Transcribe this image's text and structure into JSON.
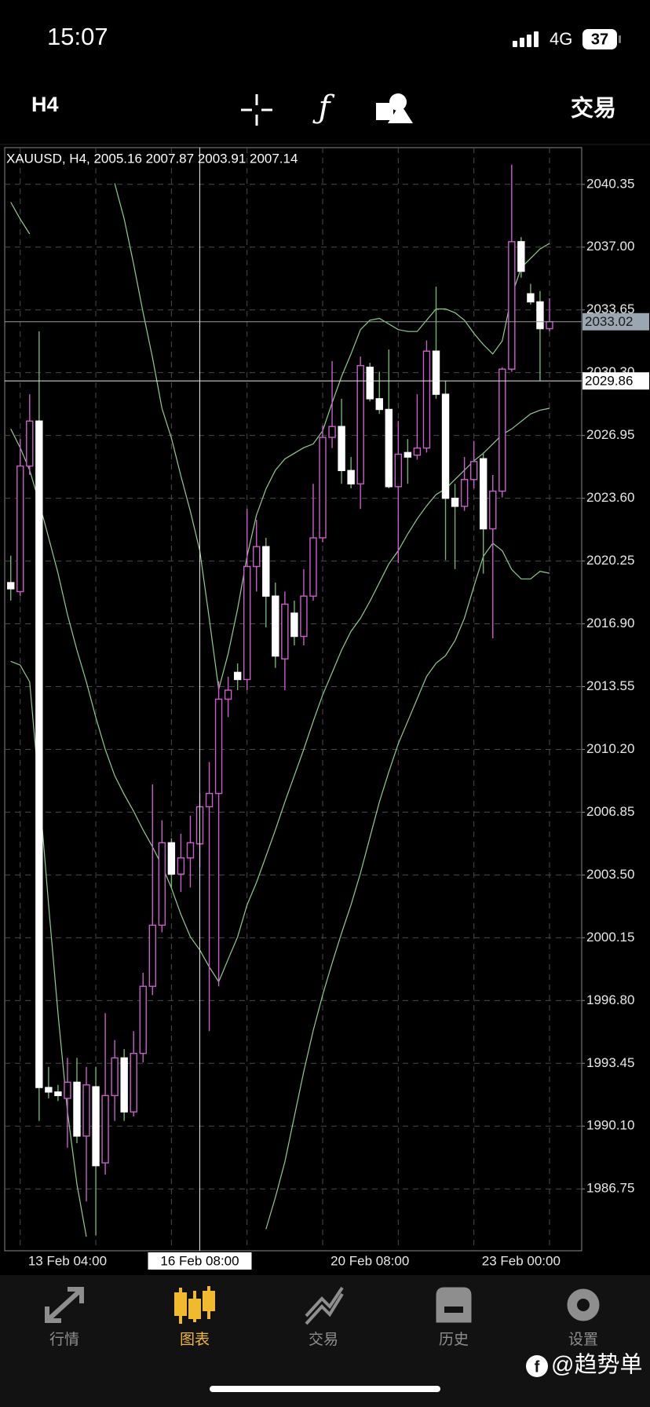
{
  "status_bar": {
    "time": "15:07",
    "network": "4G",
    "battery": 37
  },
  "toolbar": {
    "timeframe": "H4",
    "action": "交易"
  },
  "chart_data": {
    "type": "candlestick",
    "title": "XAUUSD, H4, 2005.16 2007.87 2003.91 2007.14",
    "categories": [
      null,
      null,
      null,
      null,
      null,
      null,
      "13 Feb 04:00",
      null,
      null,
      null,
      null,
      null,
      null,
      null,
      null,
      null,
      null,
      null,
      null,
      null,
      "16 Feb 08:00",
      null,
      null,
      null,
      null,
      null,
      null,
      null,
      null,
      null,
      null,
      null,
      null,
      null,
      null,
      null,
      null,
      null,
      "20 Feb 08:00",
      null,
      null,
      null,
      null,
      null,
      null,
      null,
      null,
      null,
      null,
      null,
      null,
      null,
      null,
      null,
      "23 Feb 00:00",
      null,
      null,
      null
    ],
    "open": [
      2019.1,
      2018.62,
      2025.32,
      2027.72,
      1992.16,
      1991.92,
      1991.58,
      1992.44,
      1989.57,
      1992.2,
      1988.14,
      1991.73,
      1993.74,
      1990.86,
      1993.98,
      1997.56,
      2000.82,
      2005.22,
      2003.55,
      2004.41,
      2005.16,
      2007.14,
      2007.85,
      2012.88,
      2014.31,
      2013.93,
      2019.96,
      2021.02,
      2018.38,
      2015.03,
      2017.47,
      2016.23,
      2018.38,
      2021.49,
      2026.85,
      2027.43,
      2025.08,
      2024.37,
      2030.59,
      2028.91,
      2028.34,
      2024.22,
      2026.04,
      2025.9,
      2026.28,
      2031.45,
      2029.15,
      2023.6,
      2023.17,
      2024.6,
      2025.71,
      2021.97,
      2023.98,
      2030.49,
      2037.29,
      2034.51,
      2034.08,
      2032.65
    ],
    "high": [
      2020.54,
      2026.76,
      2029.15,
      2032.5,
      1993.26,
      1992.3,
      1993.74,
      1993.74,
      1993.26,
      1993.26,
      1996.13,
      1994.69,
      1994.21,
      1995.17,
      1998.28,
      2008.33,
      2006.42,
      2005.46,
      2005.7,
      2006.66,
      2007.87,
      2009.53,
      2013.84,
      2014.08,
      2014.79,
      2023.03,
      2022.45,
      2021.49,
      2019.1,
      2018.62,
      2018.14,
      2019.82,
      2024.37,
      2027.48,
      2030.92,
      2028.91,
      2025.8,
      2031.16,
      2030.83,
      2030.35,
      2031.54,
      2027.72,
      2026.76,
      2029.15,
      2032.02,
      2034.89,
      2029.87,
      2024.37,
      2025.8,
      2026.66,
      2026.04,
      2024.84,
      2030.59,
      2041.4,
      2037.53,
      2035.04,
      2034.66,
      2034.27
    ],
    "low": [
      2018.14,
      2018.38,
      2024.84,
      1990.38,
      1991.58,
      1991.44,
      1988.95,
      1989.19,
      1986.08,
      1984.26,
      1987.51,
      1990.38,
      1990.38,
      1990.62,
      1993.5,
      1997.09,
      2000.44,
      2002.83,
      2002.59,
      2002.83,
      2003.91,
      1995.17,
      1997.56,
      2011.92,
      2013.36,
      2013.36,
      2018.62,
      2016.71,
      2014.55,
      2013.36,
      2015.75,
      2015.75,
      2018.14,
      2021.25,
      2026.28,
      2024.37,
      2024.13,
      2023.03,
      2028.77,
      2028.1,
      2024.13,
      2020.15,
      2024.37,
      2025.66,
      2026.04,
      2028.91,
      2020.3,
      2019.82,
      2022.93,
      2024.13,
      2019.58,
      2016.13,
      2023.65,
      2030.35,
      2035.37,
      2033.94,
      2029.87,
      2032.5
    ],
    "close": [
      2018.77,
      2025.32,
      2027.72,
      1992.16,
      1991.92,
      1991.73,
      1992.44,
      1989.57,
      1992.3,
      1987.99,
      1991.73,
      1993.74,
      1990.86,
      1993.98,
      1997.56,
      2000.82,
      2005.22,
      2003.55,
      2004.41,
      2005.22,
      2007.14,
      2007.85,
      2012.88,
      2013.36,
      2013.93,
      2019.96,
      2021.02,
      2018.38,
      2015.18,
      2017.95,
      2016.23,
      2018.38,
      2021.49,
      2026.85,
      2027.43,
      2025.08,
      2024.37,
      2030.68,
      2028.91,
      2028.34,
      2024.22,
      2025.95,
      2025.8,
      2026.28,
      2031.45,
      2029.15,
      2023.6,
      2023.17,
      2024.6,
      2025.56,
      2021.97,
      2023.98,
      2030.49,
      2037.29,
      2035.71,
      2034.08,
      2032.65,
      2033.02
    ],
    "up_color": "#c95fc9",
    "down_color": "#ffffff",
    "down_wick_color": "#6fb56f",
    "overlays": [
      {
        "color": "#8fcf8f",
        "values": [
          2039.4,
          2038.5,
          2037.7,
          null,
          null,
          null,
          null,
          null,
          null,
          null,
          null,
          2040.4,
          2038.5,
          2036.1,
          2033.5,
          2031.1,
          2028.4,
          2026.8,
          2024.8,
          2022.9,
          2020.8,
          2017.2,
          2013.4,
          2015.3,
          2017.7,
          2020.5,
          2022.7,
          2024.1,
          2025.1,
          2025.7,
          2026.0,
          2026.3,
          2026.5,
          2027.2,
          2028.7,
          2030.1,
          2031.3,
          2032.6,
          2033.1,
          2033.2,
          2032.9,
          2032.6,
          2032.5,
          2032.5,
          2033.1,
          2033.7,
          2033.7,
          2033.5,
          2033.1,
          2032.4,
          2031.8,
          2031.3,
          2032.0,
          2034.4,
          2035.9,
          2036.4,
          2036.9,
          2037.2
        ]
      },
      {
        "color": "#8fcf8f",
        "values": [
          2027.3,
          2026.3,
          2025.1,
          2023.4,
          2021.5,
          2019.6,
          2017.4,
          2015.5,
          2013.8,
          2011.9,
          2010.2,
          2008.8,
          2007.8,
          2006.9,
          2005.9,
          2005.0,
          2004.0,
          2002.8,
          2001.4,
          2000.2,
          1999.5,
          1998.6,
          1997.8,
          1999.0,
          2000.2,
          2001.9,
          2003.1,
          2004.5,
          2005.9,
          2007.4,
          2008.8,
          2010.2,
          2011.7,
          2013.1,
          2014.3,
          2015.5,
          2016.5,
          2017.2,
          2018.1,
          2019.1,
          2020.1,
          2020.8,
          2021.7,
          2022.5,
          2023.2,
          2023.8,
          2024.1,
          2024.6,
          2025.1,
          2025.6,
          2026.0,
          2026.5,
          2027.0,
          2027.3,
          2027.7,
          2028.1,
          2028.3,
          2028.4
        ]
      },
      {
        "color": "#8fcf8f",
        "values": [
          2014.9,
          2014.7,
          2013.8,
          2008.1,
          2001.9,
          1996.1,
          1990.9,
          1987.0,
          1984.2,
          null,
          null,
          null,
          null,
          null,
          null,
          null,
          null,
          null,
          null,
          null,
          null,
          null,
          null,
          null,
          null,
          null,
          null,
          1984.6,
          1986.3,
          1988.2,
          1990.6,
          1993.0,
          1995.2,
          1997.1,
          1998.8,
          2000.4,
          2001.9,
          2003.6,
          2005.5,
          2007.4,
          2009.0,
          2010.5,
          2011.7,
          2012.9,
          2014.1,
          2014.8,
          2015.2,
          2016.0,
          2017.2,
          2018.9,
          2020.5,
          2021.2,
          2020.8,
          2019.8,
          2019.3,
          2019.3,
          2019.7,
          2019.6
        ]
      }
    ],
    "ylim": [
      1983.45,
      2042.31
    ],
    "yticks": [
      1986.75,
      {
        "value": 1990.1,
        "label": "1990.10"
      },
      1993.45,
      {
        "value": 1996.8,
        "label": "1996.80"
      },
      2000.15,
      {
        "value": 2003.5,
        "label": "2003.50"
      },
      2006.85,
      {
        "value": 2010.2,
        "label": "2010.20"
      },
      2013.55,
      {
        "value": 2016.9,
        "label": "2016.90"
      },
      2020.25,
      {
        "value": 2023.6,
        "label": "2023.60"
      },
      2026.95,
      {
        "value": 2030.3,
        "label": "2030.30"
      },
      2033.65,
      {
        "value": 2037,
        "label": "2037.00"
      },
      2040.35
    ],
    "grid": true,
    "last_price": 2033.02,
    "crosshair": {
      "index": 20,
      "price": 2029.86
    }
  },
  "tab_bar": {
    "tabs": [
      "行情",
      "图表",
      "交易",
      "历史",
      "设置"
    ],
    "active": 1
  },
  "watermark": "@趋势单"
}
